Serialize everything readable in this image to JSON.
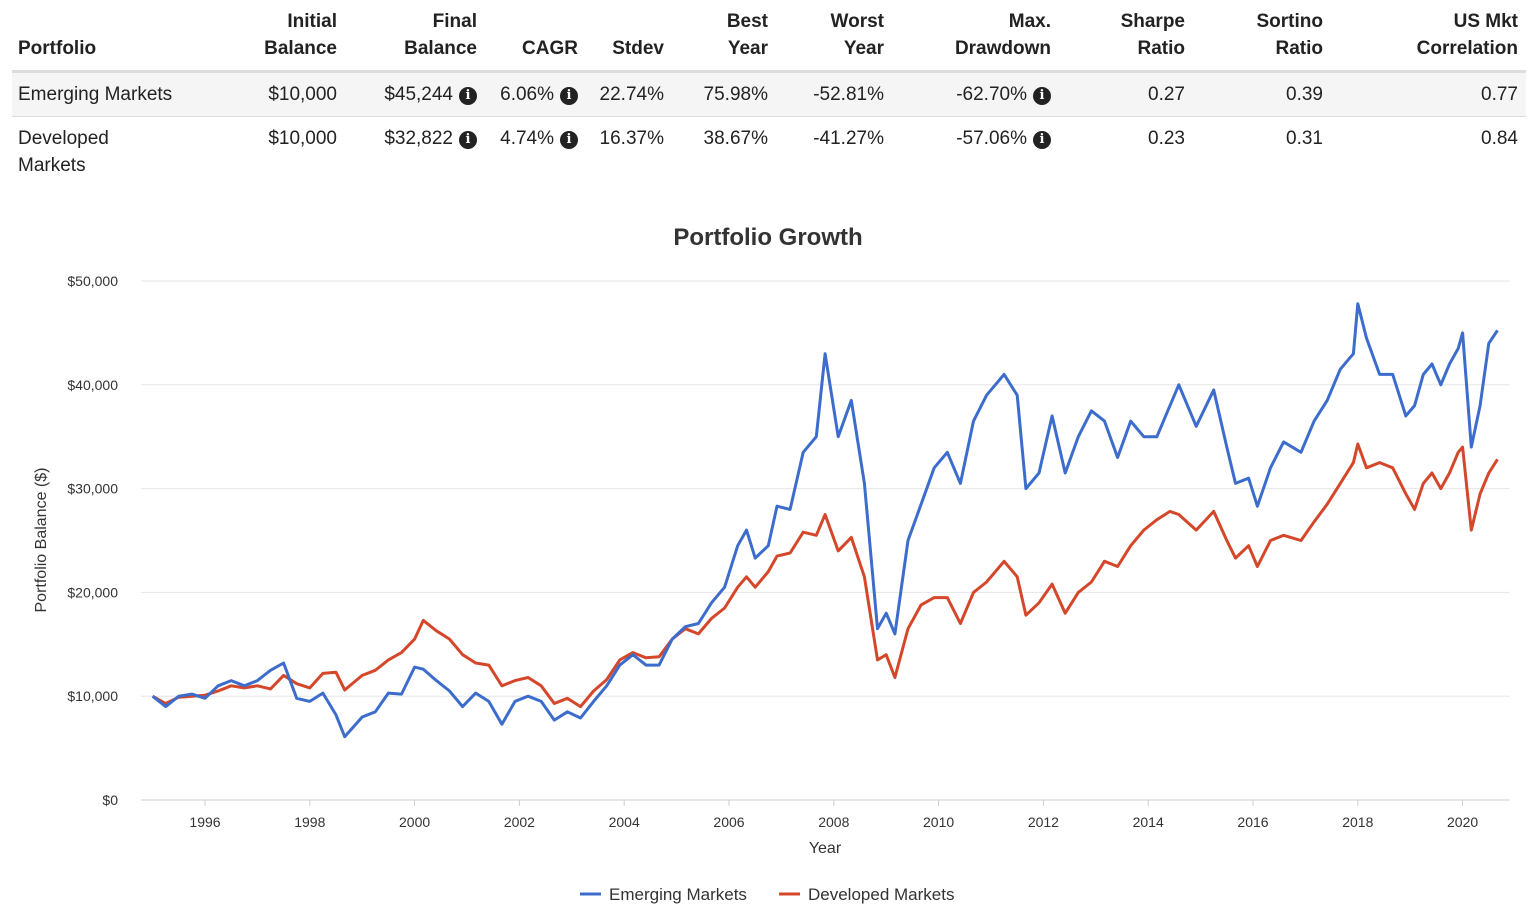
{
  "table": {
    "headers": [
      [
        "Portfolio"
      ],
      [
        "Initial",
        "Balance"
      ],
      [
        "Final",
        "Balance"
      ],
      [
        "CAGR"
      ],
      [
        "Stdev"
      ],
      [
        "Best",
        "Year"
      ],
      [
        "Worst",
        "Year"
      ],
      [
        "Max.",
        "Drawdown"
      ],
      [
        "Sharpe",
        "Ratio"
      ],
      [
        "Sortino",
        "Ratio"
      ],
      [
        "US Mkt",
        "Correlation"
      ]
    ],
    "rows": [
      {
        "portfolio": [
          "Emerging Markets"
        ],
        "initial": "$10,000",
        "final": "$45,244",
        "cagr": "6.06%",
        "stdev": "22.74%",
        "best": "75.98%",
        "worst": "-52.81%",
        "maxdd": "-62.70%",
        "sharpe": "0.27",
        "sortino": "0.39",
        "corr": "0.77"
      },
      {
        "portfolio": [
          "Developed",
          "Markets"
        ],
        "initial": "$10,000",
        "final": "$32,822",
        "cagr": "4.74%",
        "stdev": "16.37%",
        "best": "38.67%",
        "worst": "-41.27%",
        "maxdd": "-57.06%",
        "sharpe": "0.23",
        "sortino": "0.31",
        "corr": "0.84"
      }
    ],
    "info_icon": "info-circle-icon"
  },
  "chart_data": {
    "type": "line",
    "title": "Portfolio Growth",
    "xlabel": "Year",
    "ylabel": "Portfolio Balance ($)",
    "xlim": [
      1995,
      2020.75
    ],
    "ylim": [
      0,
      50000
    ],
    "xticks": [
      "1996",
      "1998",
      "2000",
      "2002",
      "2004",
      "2006",
      "2008",
      "2010",
      "2012",
      "2014",
      "2016",
      "2018",
      "2020"
    ],
    "yticks": [
      "$0",
      "$10,000",
      "$20,000",
      "$30,000",
      "$40,000",
      "$50,000"
    ],
    "grid": true,
    "legend": "bottom",
    "dates": [
      "1995-01",
      "1995-04",
      "1995-07",
      "1995-10",
      "1996-01",
      "1996-04",
      "1996-07",
      "1996-10",
      "1997-01",
      "1997-04",
      "1997-07",
      "1997-10",
      "1998-01",
      "1998-04",
      "1998-07",
      "1998-09",
      "1999-01",
      "1999-04",
      "1999-07",
      "1999-10",
      "2000-01",
      "2000-03",
      "2000-06",
      "2000-09",
      "2000-12",
      "2001-03",
      "2001-06",
      "2001-09",
      "2001-12",
      "2002-03",
      "2002-06",
      "2002-09",
      "2002-12",
      "2003-03",
      "2003-06",
      "2003-09",
      "2003-12",
      "2004-03",
      "2004-06",
      "2004-09",
      "2004-12",
      "2005-03",
      "2005-06",
      "2005-09",
      "2005-12",
      "2006-03",
      "2006-05",
      "2006-07",
      "2006-10",
      "2006-12",
      "2007-03",
      "2007-06",
      "2007-09",
      "2007-11",
      "2008-02",
      "2008-05",
      "2008-08",
      "2008-11",
      "2009-01",
      "2009-03",
      "2009-06",
      "2009-09",
      "2009-12",
      "2010-03",
      "2010-06",
      "2010-09",
      "2010-12",
      "2011-04",
      "2011-07",
      "2011-09",
      "2011-12",
      "2012-03",
      "2012-06",
      "2012-09",
      "2012-12",
      "2013-03",
      "2013-06",
      "2013-09",
      "2013-12",
      "2014-03",
      "2014-06",
      "2014-08",
      "2014-12",
      "2015-04",
      "2015-07",
      "2015-09",
      "2015-12",
      "2016-02",
      "2016-05",
      "2016-08",
      "2016-12",
      "2017-03",
      "2017-06",
      "2017-09",
      "2017-12",
      "2018-01",
      "2018-03",
      "2018-06",
      "2018-09",
      "2018-12",
      "2019-02",
      "2019-04",
      "2019-06",
      "2019-08",
      "2019-10",
      "2019-12",
      "2020-01",
      "2020-03",
      "2020-05",
      "2020-07",
      "2020-09"
    ],
    "series": [
      {
        "name": "Emerging Markets",
        "color": "#3c6ccc",
        "values": [
          10000,
          9000,
          10000,
          10200,
          9800,
          11000,
          11500,
          11000,
          11500,
          12500,
          13200,
          9800,
          9500,
          10300,
          8200,
          6100,
          8000,
          8500,
          10300,
          10200,
          12800,
          12600,
          11500,
          10500,
          9000,
          10300,
          9500,
          7300,
          9500,
          10000,
          9500,
          7700,
          8500,
          7900,
          9500,
          11000,
          13000,
          14000,
          13000,
          13000,
          15500,
          16700,
          17000,
          19000,
          20500,
          24500,
          26000,
          23300,
          24500,
          28300,
          28000,
          33500,
          35000,
          43000,
          35000,
          38500,
          30500,
          16500,
          18000,
          16000,
          25000,
          28500,
          32000,
          33500,
          30500,
          36500,
          39000,
          41000,
          39000,
          30000,
          31500,
          37000,
          31500,
          35000,
          37500,
          36500,
          33000,
          36500,
          35000,
          35000,
          38000,
          40000,
          36000,
          39500,
          34000,
          30500,
          31000,
          28300,
          32000,
          34500,
          33500,
          36500,
          38500,
          41500,
          43000,
          47800,
          44500,
          41000,
          41000,
          37000,
          38000,
          41000,
          42000,
          40000,
          42000,
          43500,
          45000,
          34000,
          38000,
          44000,
          45244
        ]
      },
      {
        "name": "Developed Markets",
        "color": "#d4472a",
        "values": [
          10000,
          9300,
          9900,
          10000,
          10100,
          10500,
          11000,
          10800,
          11000,
          10700,
          12000,
          11200,
          10800,
          12200,
          12300,
          10600,
          12000,
          12500,
          13500,
          14200,
          15500,
          17300,
          16300,
          15500,
          14000,
          13200,
          13000,
          11000,
          11500,
          11800,
          11000,
          9300,
          9800,
          9000,
          10500,
          11600,
          13500,
          14200,
          13700,
          13800,
          15500,
          16500,
          16000,
          17500,
          18500,
          20500,
          21500,
          20500,
          22000,
          23500,
          23800,
          25800,
          25500,
          27500,
          24000,
          25300,
          21500,
          13500,
          14000,
          11800,
          16500,
          18800,
          19500,
          19500,
          17000,
          20000,
          21000,
          23000,
          21500,
          17800,
          19000,
          20800,
          18000,
          20000,
          21000,
          23000,
          22500,
          24500,
          26000,
          27000,
          27800,
          27500,
          26000,
          27800,
          25000,
          23300,
          24500,
          22500,
          25000,
          25500,
          25000,
          26800,
          28500,
          30500,
          32500,
          34300,
          32000,
          32500,
          32000,
          29500,
          28000,
          30500,
          31500,
          30000,
          31500,
          33500,
          34000,
          26000,
          29500,
          31500,
          32822
        ]
      }
    ]
  }
}
